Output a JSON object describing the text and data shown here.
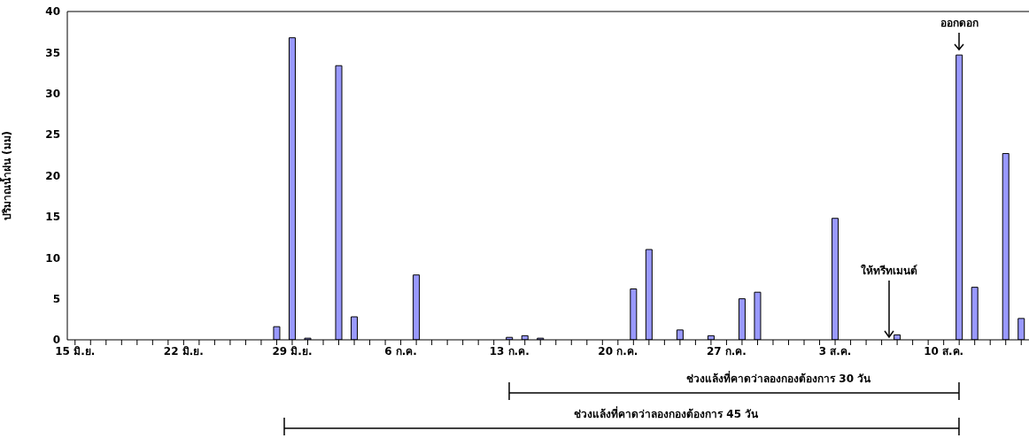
{
  "chart_data": {
    "type": "bar",
    "ylabel": "ปริมาณน้ำฝน (มม)",
    "categories": [
      "15 มิ.ย.",
      null,
      null,
      null,
      null,
      null,
      null,
      "22 มิ.ย.",
      null,
      null,
      null,
      null,
      null,
      null,
      "29 มิ.ย.",
      null,
      null,
      null,
      null,
      null,
      null,
      "6 ก.ค.",
      null,
      null,
      null,
      null,
      null,
      null,
      "13 ก.ค.",
      null,
      null,
      null,
      null,
      null,
      null,
      "20 ก.ค.",
      null,
      null,
      null,
      null,
      null,
      null,
      "27 ก.ค.",
      null,
      null,
      null,
      null,
      null,
      null,
      "3 ส.ค.",
      null,
      null,
      null,
      null,
      null,
      null,
      "10 ส.ค.",
      null,
      null,
      null,
      null,
      null
    ],
    "values": [
      0,
      0,
      0,
      0,
      0,
      0,
      0,
      0,
      0,
      0,
      0,
      0,
      0,
      1.6,
      36.8,
      0.2,
      0,
      33.4,
      2.8,
      0,
      0,
      0,
      7.9,
      0,
      0,
      0,
      0,
      0,
      0.3,
      0.5,
      0.2,
      0,
      0,
      0,
      0,
      0,
      6.2,
      11.0,
      0,
      1.2,
      0,
      0.5,
      0,
      5.0,
      5.8,
      0,
      0,
      0,
      0,
      14.8,
      0,
      0,
      0,
      0.6,
      0,
      0,
      0,
      34.7,
      6.4,
      0,
      22.7,
      2.6
    ],
    "color": "#9999ff",
    "ylim": [
      0,
      40
    ],
    "yticks": [
      0,
      5,
      10,
      15,
      20,
      25,
      30,
      35,
      40
    ],
    "grid": false,
    "legend": false,
    "annotations": [
      "ออกดอก",
      "ให้ทรีทเมนต์",
      "ช่วงแล้งที่คาดว่าลองกองต้องการ 30 วัน",
      "ช่วงแล้งที่คาดว่าลองกองต้องการ 45 วัน"
    ]
  }
}
